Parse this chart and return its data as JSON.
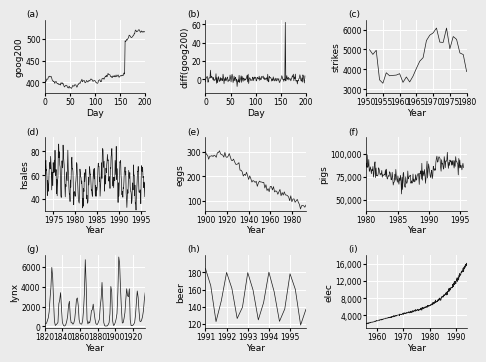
{
  "panels": [
    {
      "label": "(a)",
      "ylabel": "goog200",
      "xlabel": "Day",
      "xlim": [
        0,
        200
      ],
      "ylim": [
        375,
        545
      ],
      "yticks": [
        400,
        450,
        500
      ],
      "xticks": [
        0,
        50,
        100,
        150,
        200
      ],
      "series": "goog200"
    },
    {
      "label": "(b)",
      "ylabel": "diff(goog200)",
      "xlabel": "Day",
      "xlim": [
        0,
        200
      ],
      "ylim": [
        -15,
        65
      ],
      "yticks": [
        0,
        20,
        40,
        60
      ],
      "xticks": [
        0,
        50,
        100,
        150,
        200
      ],
      "series": "diff_goog200"
    },
    {
      "label": "(c)",
      "ylabel": "strikes",
      "xlabel": "Year",
      "xlim": [
        1951,
        1980
      ],
      "ylim": [
        2800,
        6500
      ],
      "yticks": [
        3000,
        4000,
        5000,
        6000
      ],
      "xticks": [
        1950,
        1955,
        1960,
        1965,
        1970,
        1975,
        1980
      ],
      "series": "strikes"
    },
    {
      "label": "(d)",
      "ylabel": "hsales",
      "xlabel": "Year",
      "xlim": [
        1973,
        1996
      ],
      "ylim": [
        30,
        92
      ],
      "yticks": [
        40,
        60,
        80
      ],
      "xticks": [
        1975,
        1980,
        1985,
        1990,
        1995
      ],
      "series": "hsales"
    },
    {
      "label": "(e)",
      "ylabel": "eggs",
      "xlabel": "Year",
      "xlim": [
        1900,
        1993
      ],
      "ylim": [
        60,
        360
      ],
      "yticks": [
        100,
        200,
        300
      ],
      "xticks": [
        1900,
        1920,
        1940,
        1960,
        1980
      ],
      "series": "eggs"
    },
    {
      "label": "(f)",
      "ylabel": "pigs",
      "xlabel": "Year",
      "xlim": [
        1980,
        1996
      ],
      "ylim": [
        38000,
        118000
      ],
      "yticks": [
        50000,
        75000,
        100000
      ],
      "xticks": [
        1980,
        1985,
        1990,
        1995
      ],
      "series": "pigs"
    },
    {
      "label": "(g)",
      "ylabel": "lynx",
      "xlabel": "Year",
      "xlim": [
        1821,
        1934
      ],
      "ylim": [
        -200,
        7200
      ],
      "yticks": [
        0,
        2000,
        4000,
        6000
      ],
      "xticks": [
        1820,
        1840,
        1860,
        1880,
        1900,
        1920
      ],
      "series": "lynx"
    },
    {
      "label": "(h)",
      "ylabel": "beer",
      "xlabel": "Year",
      "xlim": [
        1991.0,
        1995.75
      ],
      "ylim": [
        115,
        200
      ],
      "yticks": [
        120,
        140,
        160,
        180
      ],
      "xticks": [
        1991,
        1992,
        1993,
        1994,
        1995
      ],
      "series": "beer"
    },
    {
      "label": "(i)",
      "ylabel": "elec",
      "xlabel": "Year",
      "xlim": [
        1956,
        1994
      ],
      "ylim": [
        1000,
        18000
      ],
      "yticks": [
        4000,
        8000,
        12000,
        16000
      ],
      "xticks": [
        1960,
        1970,
        1980,
        1990
      ],
      "series": "elec"
    }
  ],
  "bg_color": "#ebebeb",
  "line_color": "#1a1a1a",
  "grid_color": "#ffffff",
  "label_fontsize": 6.5,
  "tick_fontsize": 5.5
}
